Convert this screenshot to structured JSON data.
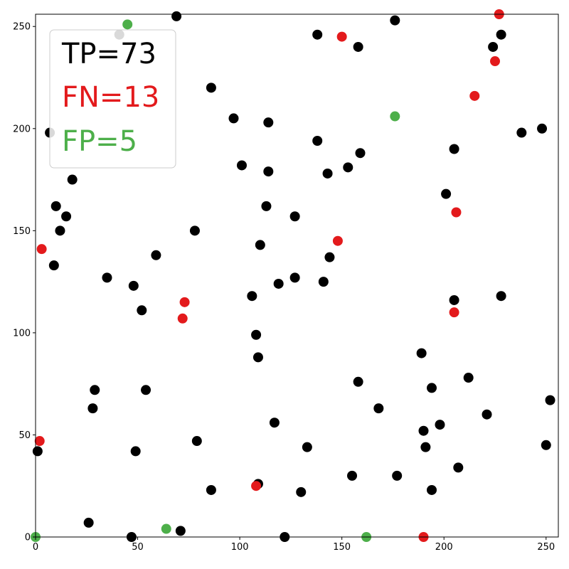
{
  "chart_data": {
    "type": "scatter",
    "title": "",
    "xlabel": "",
    "ylabel": "",
    "xlim": [
      0,
      256
    ],
    "ylim": [
      0,
      256
    ],
    "x_ticks": [
      0,
      50,
      100,
      150,
      200,
      250
    ],
    "y_ticks": [
      0,
      50,
      100,
      150,
      200,
      250
    ],
    "grid": false,
    "legend_placement": "top-left",
    "legend": [
      {
        "text": "TP=73",
        "color": "#000000"
      },
      {
        "text": "FN=13",
        "color": "#e31a1c"
      },
      {
        "text": "FP=5",
        "color": "#4daf4a"
      }
    ],
    "series": [
      {
        "color": "#000000",
        "points": [
          [
            69,
            255
          ],
          [
            41,
            246
          ],
          [
            138,
            246
          ],
          [
            176,
            253
          ],
          [
            158,
            240
          ],
          [
            228,
            246
          ],
          [
            224,
            240
          ],
          [
            86,
            220
          ],
          [
            97,
            205
          ],
          [
            114,
            203
          ],
          [
            7,
            198
          ],
          [
            138,
            194
          ],
          [
            205,
            190
          ],
          [
            238,
            198
          ],
          [
            248,
            200
          ],
          [
            101,
            182
          ],
          [
            114,
            179
          ],
          [
            143,
            178
          ],
          [
            153,
            181
          ],
          [
            159,
            188
          ],
          [
            18,
            175
          ],
          [
            10,
            162
          ],
          [
            15,
            157
          ],
          [
            12,
            150
          ],
          [
            113,
            162
          ],
          [
            127,
            157
          ],
          [
            201,
            168
          ],
          [
            78,
            150
          ],
          [
            110,
            143
          ],
          [
            9,
            133
          ],
          [
            59,
            138
          ],
          [
            144,
            137
          ],
          [
            35,
            127
          ],
          [
            48,
            123
          ],
          [
            106,
            118
          ],
          [
            119,
            124
          ],
          [
            127,
            127
          ],
          [
            141,
            125
          ],
          [
            205,
            116
          ],
          [
            228,
            118
          ],
          [
            52,
            111
          ],
          [
            108,
            99
          ],
          [
            109,
            88
          ],
          [
            189,
            90
          ],
          [
            212,
            78
          ],
          [
            29,
            72
          ],
          [
            54,
            72
          ],
          [
            158,
            76
          ],
          [
            194,
            73
          ],
          [
            28,
            63
          ],
          [
            168,
            63
          ],
          [
            221,
            60
          ],
          [
            252,
            67
          ],
          [
            117,
            56
          ],
          [
            190,
            52
          ],
          [
            198,
            55
          ],
          [
            79,
            47
          ],
          [
            1,
            42
          ],
          [
            49,
            42
          ],
          [
            133,
            44
          ],
          [
            191,
            44
          ],
          [
            250,
            45
          ],
          [
            207,
            34
          ],
          [
            86,
            23
          ],
          [
            109,
            26
          ],
          [
            130,
            22
          ],
          [
            155,
            30
          ],
          [
            177,
            30
          ],
          [
            194,
            23
          ],
          [
            26,
            7
          ],
          [
            71,
            3
          ],
          [
            47,
            0
          ],
          [
            122,
            0
          ]
        ]
      },
      {
        "color": "#e31a1c",
        "points": [
          [
            150,
            245
          ],
          [
            227,
            256
          ],
          [
            225,
            233
          ],
          [
            215,
            216
          ],
          [
            206,
            159
          ],
          [
            3,
            141
          ],
          [
            148,
            145
          ],
          [
            73,
            115
          ],
          [
            72,
            107
          ],
          [
            205,
            110
          ],
          [
            2,
            47
          ],
          [
            108,
            25
          ],
          [
            190,
            0
          ]
        ]
      },
      {
        "color": "#4daf4a",
        "points": [
          [
            45,
            251
          ],
          [
            176,
            206
          ],
          [
            0,
            0
          ],
          [
            64,
            4
          ],
          [
            162,
            0
          ]
        ]
      }
    ]
  }
}
